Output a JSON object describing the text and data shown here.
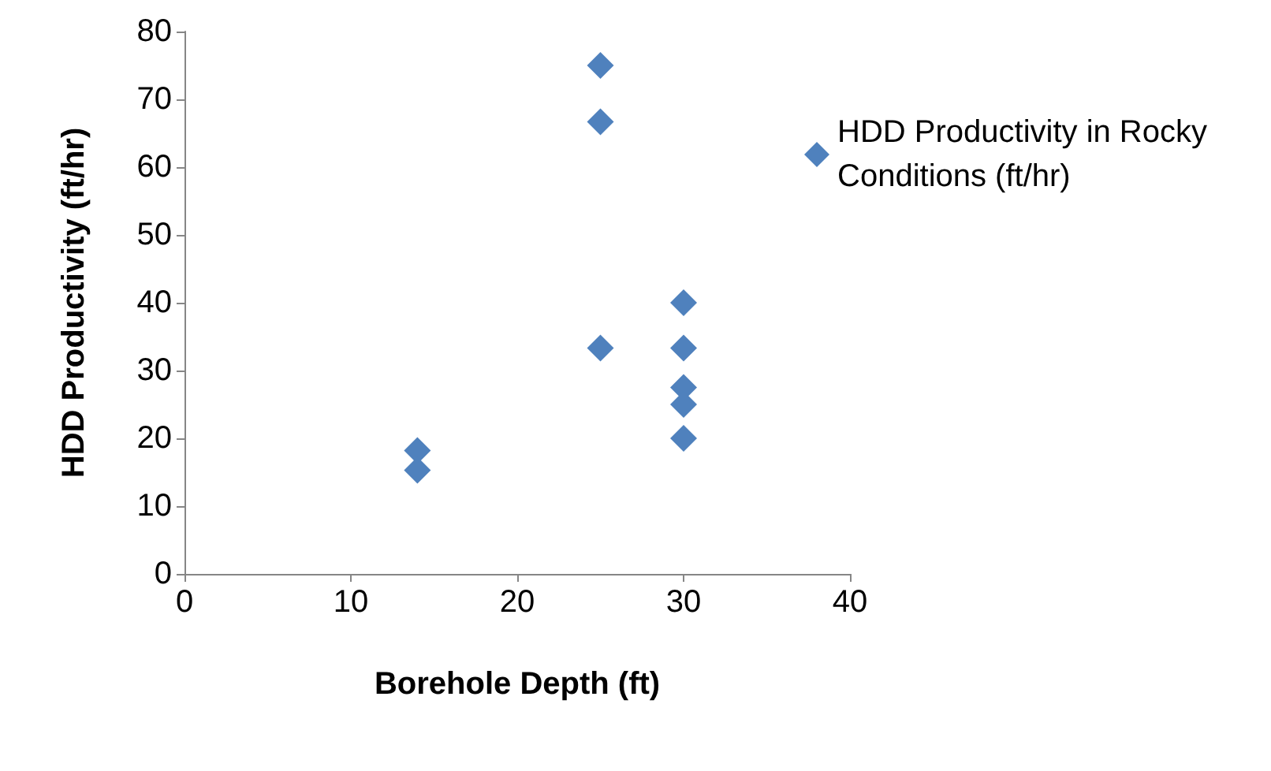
{
  "chart_data": {
    "type": "scatter",
    "xlabel": "Borehole Depth (ft)",
    "ylabel": "HDD Productivity (ft/hr)",
    "x": [
      14,
      14,
      25,
      25,
      25,
      30,
      30,
      30,
      30,
      30
    ],
    "series": [
      {
        "name": "HDD Productivity in Rocky Conditions (ft/hr)",
        "color": "#4f81bd",
        "values": [
          18.2,
          15.3,
          75,
          66.7,
          33.3,
          40,
          33.3,
          27.5,
          25,
          20
        ]
      }
    ],
    "xlim": [
      0,
      40
    ],
    "xticks": [
      0,
      10,
      20,
      30,
      40
    ],
    "ylim": [
      0,
      80
    ],
    "yticks": [
      0,
      10,
      20,
      30,
      40,
      50,
      60,
      70,
      80
    ],
    "grid": false,
    "legend": "right",
    "marker": "diamond"
  }
}
